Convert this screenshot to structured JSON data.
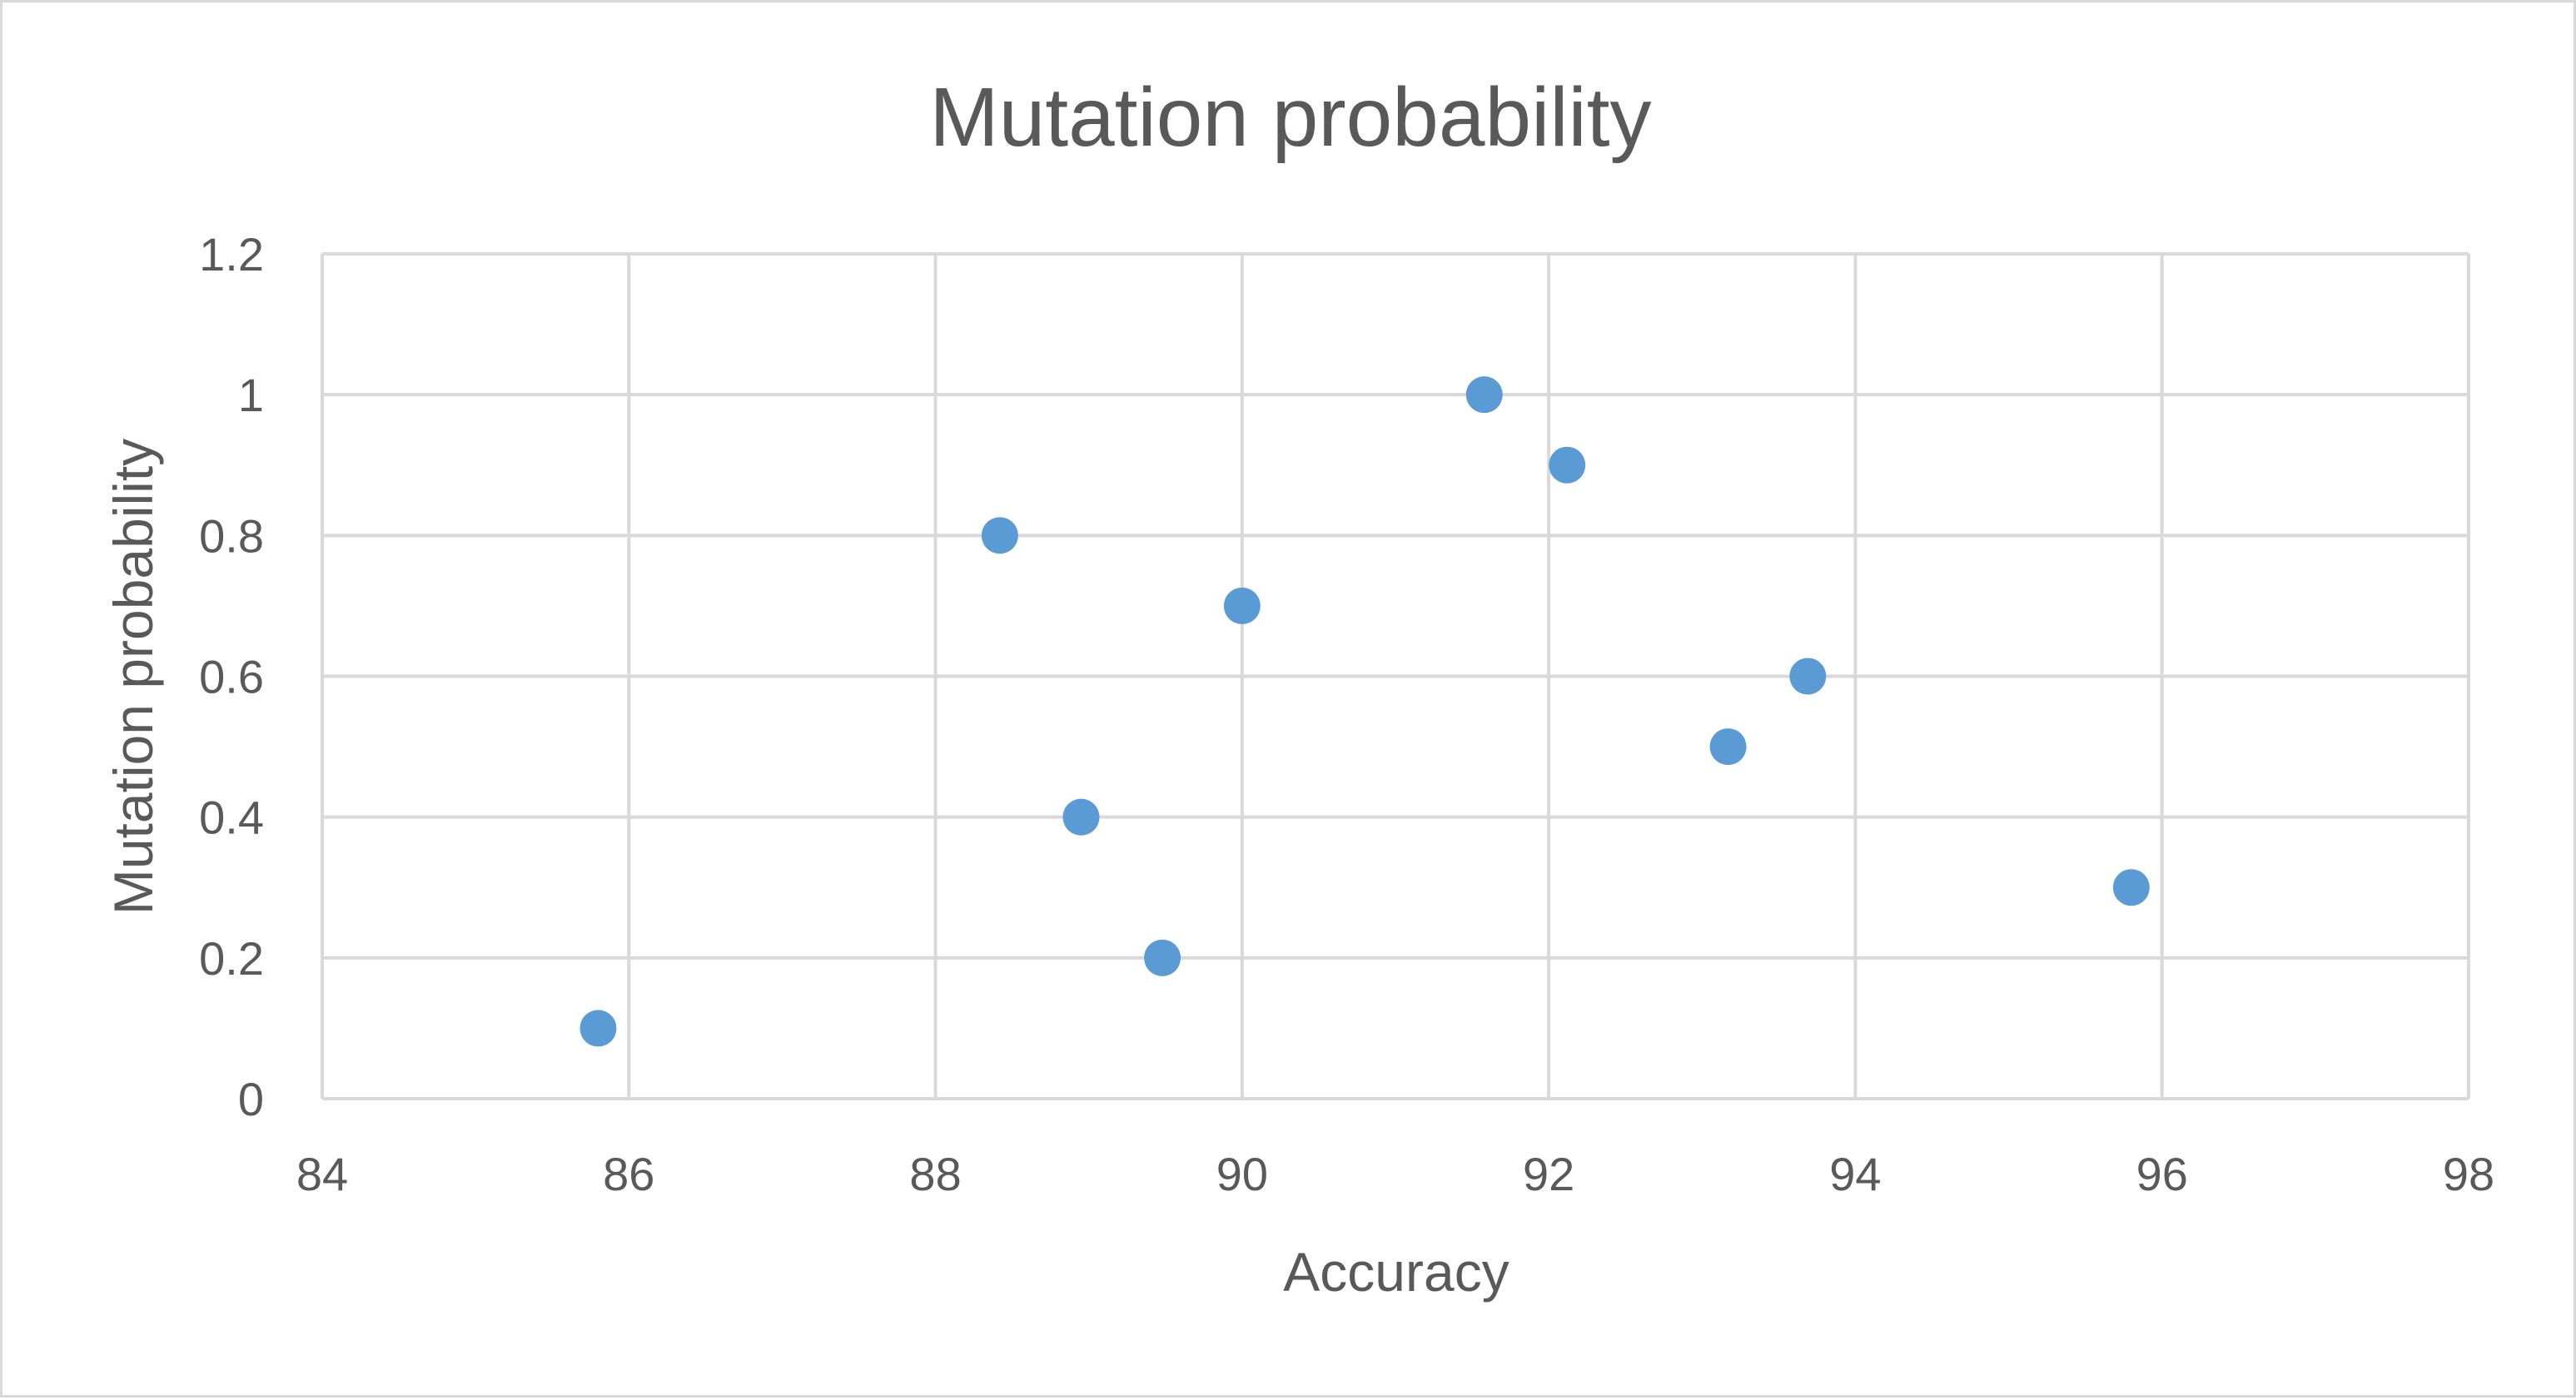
{
  "chart_data": {
    "type": "scatter",
    "title": "Mutation probability",
    "xlabel": "Accuracy",
    "ylabel": "Mutation probability",
    "xlim": [
      84,
      98
    ],
    "ylim": [
      0,
      1.2
    ],
    "x_ticks": [
      "84",
      "86",
      "88",
      "90",
      "92",
      "94",
      "96",
      "98"
    ],
    "y_ticks": [
      "0",
      "0.2",
      "0.4",
      "0.6",
      "0.8",
      "1",
      "1.2"
    ],
    "grid": true,
    "legend": "none",
    "marker_color": "#5b9bd5",
    "series": [
      {
        "points": [
          {
            "x": 85.8,
            "y": 0.1
          },
          {
            "x": 89.48,
            "y": 0.2
          },
          {
            "x": 95.8,
            "y": 0.3
          },
          {
            "x": 88.95,
            "y": 0.4
          },
          {
            "x": 93.17,
            "y": 0.5
          },
          {
            "x": 93.69,
            "y": 0.6
          },
          {
            "x": 90.0,
            "y": 0.7
          },
          {
            "x": 88.42,
            "y": 0.8
          },
          {
            "x": 92.12,
            "y": 0.9
          },
          {
            "x": 91.58,
            "y": 1.0
          }
        ]
      }
    ]
  }
}
